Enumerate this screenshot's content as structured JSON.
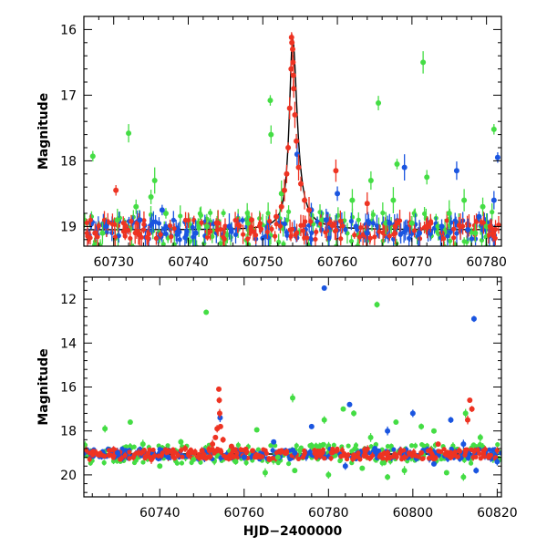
{
  "chart_data": [
    {
      "type": "scatter",
      "xlim": [
        60726,
        60782
      ],
      "ylim": [
        19.3,
        15.8
      ],
      "ylim_note": "inverted magnitude axis",
      "xticks": [
        60730,
        60740,
        60750,
        60760,
        60770,
        60780
      ],
      "yticks": [
        16,
        17,
        18,
        19
      ],
      "xlabel": "",
      "ylabel": "Magnitude",
      "grid": false,
      "colors": {
        "green": "#44dd44",
        "blue": "#1a55e0",
        "red": "#ee3322"
      },
      "model": {
        "baseline": 19.05,
        "peak_x": 60754.0,
        "peak_mag": 16.15,
        "rise_width": 0.55,
        "decay_width": 0.75
      },
      "series": [
        {
          "color": "green",
          "points": [
            [
              60727.2,
              17.93
            ],
            [
              60732.0,
              17.58
            ],
            [
              60735.5,
              18.3
            ],
            [
              60733.0,
              18.7
            ],
            [
              60730.5,
              18.9
            ],
            [
              60751.0,
              17.08
            ],
            [
              60751.1,
              17.6
            ],
            [
              60752.5,
              18.5
            ],
            [
              60765.5,
              17.12
            ],
            [
              60771.5,
              16.5
            ],
            [
              60768.0,
              18.05
            ],
            [
              60764.5,
              18.3
            ],
            [
              60767.5,
              18.6
            ],
            [
              60772.0,
              18.25
            ],
            [
              60777.0,
              18.6
            ],
            [
              60781.0,
              17.52
            ],
            [
              60779.5,
              18.7
            ],
            [
              60775.0,
              18.8
            ],
            [
              60770.0,
              18.95
            ],
            [
              60762.0,
              18.6
            ],
            [
              60737.0,
              18.8
            ],
            [
              60742.5,
              19.0
            ],
            [
              60748.0,
              18.95
            ],
            [
              60758.0,
              18.9
            ],
            [
              60766.5,
              18.95
            ],
            [
              60773.5,
              19.0
            ],
            [
              60778.5,
              19.1
            ],
            [
              60780.0,
              19.0
            ],
            [
              60735.0,
              18.55
            ],
            [
              60728.5,
              19.1
            ]
          ]
        },
        {
          "color": "blue",
          "points": [
            [
              60781.5,
              17.95
            ],
            [
              60776.0,
              18.15
            ],
            [
              60769.0,
              18.1
            ],
            [
              60760.0,
              18.5
            ],
            [
              60754.6,
              17.9
            ],
            [
              60736.5,
              18.75
            ],
            [
              60733.5,
              18.9
            ],
            [
              60745.5,
              19.0
            ],
            [
              60756.5,
              18.75
            ],
            [
              60758.5,
              18.9
            ],
            [
              60762.5,
              19.0
            ],
            [
              60767.0,
              18.95
            ],
            [
              60771.0,
              19.1
            ],
            [
              60774.0,
              19.0
            ],
            [
              60777.5,
              19.05
            ],
            [
              60779.0,
              18.85
            ],
            [
              60781.0,
              18.6
            ],
            [
              60741.0,
              19.1
            ],
            [
              60729.0,
              19.0
            ],
            [
              60764.0,
              19.1
            ]
          ]
        },
        {
          "color": "red",
          "points": [
            [
              60753.85,
              16.12
            ],
            [
              60753.9,
              16.2
            ],
            [
              60754.0,
              16.3
            ],
            [
              60754.05,
              16.5
            ],
            [
              60754.1,
              16.7
            ],
            [
              60753.8,
              16.6
            ],
            [
              60754.15,
              16.9
            ],
            [
              60754.3,
              17.3
            ],
            [
              60754.5,
              17.7
            ],
            [
              60753.6,
              17.2
            ],
            [
              60753.4,
              17.8
            ],
            [
              60753.2,
              18.2
            ],
            [
              60754.8,
              18.1
            ],
            [
              60755.1,
              18.35
            ],
            [
              60752.9,
              18.45
            ],
            [
              60752.5,
              18.7
            ],
            [
              60755.6,
              18.6
            ],
            [
              60756.2,
              18.75
            ],
            [
              60751.8,
              18.85
            ],
            [
              60759.8,
              18.15
            ],
            [
              60730.3,
              18.45
            ],
            [
              60727.5,
              19.1
            ],
            [
              60744.0,
              18.95
            ],
            [
              60748.5,
              18.9
            ],
            [
              60764.0,
              18.65
            ],
            [
              60768.0,
              18.95
            ],
            [
              60772.5,
              18.95
            ],
            [
              60776.5,
              19.0
            ],
            [
              60780.5,
              19.0
            ]
          ]
        }
      ]
    },
    {
      "type": "scatter",
      "xlim": [
        60722,
        60821
      ],
      "ylim": [
        21.0,
        11.0
      ],
      "ylim_note": "inverted magnitude axis",
      "xticks": [
        60740,
        60760,
        60780,
        60800,
        60820
      ],
      "yticks": [
        12,
        14,
        16,
        18,
        20
      ],
      "xlabel": "HJD−2400000",
      "ylabel": "Magnitude",
      "grid": false,
      "baseline": 19.05,
      "colors": {
        "green": "#44dd44",
        "blue": "#1a55e0",
        "red": "#ee3322"
      },
      "series": [
        {
          "color": "green",
          "points": [
            [
              60751.0,
              12.6
            ],
            [
              60791.5,
              12.25
            ],
            [
              60771.5,
              16.5
            ],
            [
              60783.5,
              17.0
            ],
            [
              60779.0,
              17.5
            ],
            [
              60796.0,
              17.6
            ],
            [
              60802.0,
              17.8
            ],
            [
              60812.5,
              17.2
            ],
            [
              60733.0,
              17.6
            ],
            [
              60727.0,
              17.9
            ],
            [
              60763.0,
              17.95
            ],
            [
              60786.0,
              17.2
            ],
            [
              60790.0,
              18.3
            ],
            [
              60805.0,
              18.0
            ],
            [
              60816.0,
              18.3
            ],
            [
              60740.0,
              19.6
            ],
            [
              60758.0,
              19.4
            ],
            [
              60765.0,
              19.9
            ],
            [
              60772.0,
              19.8
            ],
            [
              60780.0,
              20.0
            ],
            [
              60788.0,
              19.7
            ],
            [
              60794.0,
              20.1
            ],
            [
              60798.0,
              19.8
            ],
            [
              60808.0,
              19.9
            ],
            [
              60812.0,
              20.1
            ],
            [
              60748.0,
              19.3
            ],
            [
              60745.0,
              18.5
            ],
            [
              60736.0,
              18.6
            ],
            [
              60768.0,
              19.2
            ],
            [
              60776.0,
              18.7
            ]
          ]
        },
        {
          "color": "blue",
          "points": [
            [
              60779.0,
              11.5
            ],
            [
              60814.5,
              12.9
            ],
            [
              60754.3,
              17.4
            ],
            [
              60785.0,
              16.8
            ],
            [
              60800.0,
              17.2
            ],
            [
              60776.0,
              17.8
            ],
            [
              60809.0,
              17.5
            ],
            [
              60794.0,
              18.0
            ],
            [
              60767.0,
              18.5
            ],
            [
              60784.0,
              19.6
            ],
            [
              60805.0,
              19.5
            ],
            [
              60815.0,
              19.8
            ],
            [
              60812.0,
              18.6
            ],
            [
              60791.0,
              18.8
            ],
            [
              60760.0,
              19.2
            ],
            [
              60742.0,
              19.2
            ],
            [
              60730.0,
              19.0
            ],
            [
              60772.0,
              19.0
            ],
            [
              60798.0,
              19.1
            ],
            [
              60820.0,
              19.4
            ]
          ]
        },
        {
          "color": "red",
          "points": [
            [
              60754.0,
              16.1
            ],
            [
              60754.1,
              16.6
            ],
            [
              60754.2,
              17.2
            ],
            [
              60754.4,
              17.8
            ],
            [
              60753.6,
              17.9
            ],
            [
              60753.2,
              18.3
            ],
            [
              60755.0,
              18.4
            ],
            [
              60752.5,
              18.6
            ],
            [
              60757.0,
              18.7
            ],
            [
              60750.0,
              18.9
            ],
            [
              60813.5,
              16.6
            ],
            [
              60814.0,
              17.0
            ],
            [
              60813.0,
              17.5
            ],
            [
              60806.0,
              18.6
            ],
            [
              60811.0,
              18.9
            ],
            [
              60818.0,
              19.2
            ],
            [
              60728.0,
              19.1
            ],
            [
              60735.0,
              19.0
            ],
            [
              60742.0,
              18.9
            ],
            [
              60746.0,
              18.8
            ],
            [
              60762.0,
              18.9
            ],
            [
              60770.0,
              19.0
            ],
            [
              60778.0,
              19.0
            ],
            [
              60786.0,
              19.1
            ],
            [
              60794.0,
              19.0
            ],
            [
              60802.0,
              19.0
            ],
            [
              60809.0,
              19.2
            ],
            [
              60738.0,
              19.3
            ],
            [
              60766.0,
              19.3
            ],
            [
              60798.0,
              19.2
            ]
          ]
        }
      ]
    }
  ]
}
